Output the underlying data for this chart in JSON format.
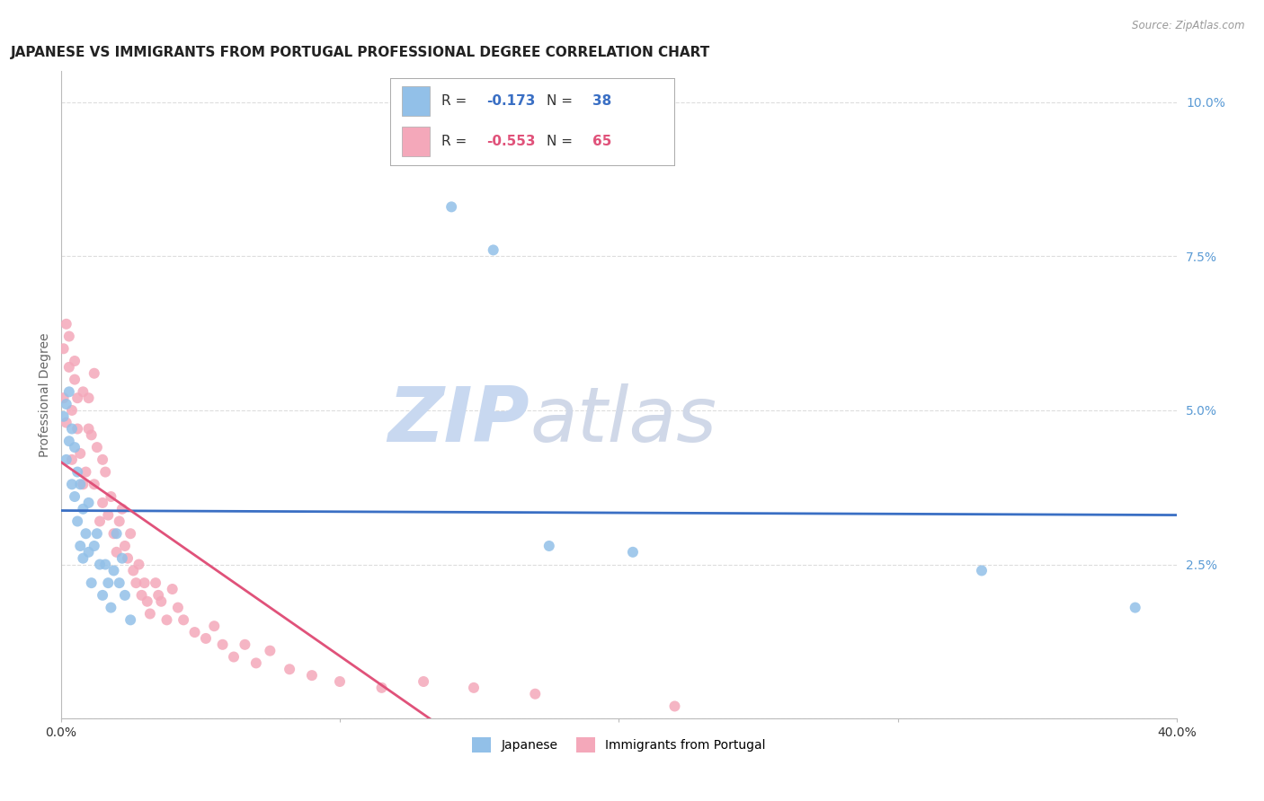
{
  "title": "JAPANESE VS IMMIGRANTS FROM PORTUGAL PROFESSIONAL DEGREE CORRELATION CHART",
  "source": "Source: ZipAtlas.com",
  "ylabel": "Professional Degree",
  "xlim": [
    0.0,
    0.4
  ],
  "ylim": [
    0.0,
    0.105
  ],
  "ytick_vals": [
    0.0,
    0.025,
    0.05,
    0.075,
    0.1
  ],
  "ytick_labels": [
    "",
    "2.5%",
    "5.0%",
    "7.5%",
    "10.0%"
  ],
  "xtick_vals": [
    0.0,
    0.1,
    0.2,
    0.3,
    0.4
  ],
  "xtick_labels": [
    "0.0%",
    "",
    "",
    "",
    "40.0%"
  ],
  "legend_R_japanese": "-0.173",
  "legend_N_japanese": "38",
  "legend_R_portugal": "-0.553",
  "legend_N_portugal": "65",
  "japanese_x": [
    0.001,
    0.002,
    0.002,
    0.003,
    0.003,
    0.004,
    0.004,
    0.005,
    0.005,
    0.006,
    0.006,
    0.007,
    0.007,
    0.008,
    0.008,
    0.009,
    0.01,
    0.01,
    0.011,
    0.012,
    0.013,
    0.014,
    0.015,
    0.016,
    0.017,
    0.018,
    0.019,
    0.02,
    0.021,
    0.022,
    0.023,
    0.025,
    0.14,
    0.155,
    0.175,
    0.205,
    0.33,
    0.385
  ],
  "japanese_y": [
    0.049,
    0.051,
    0.042,
    0.053,
    0.045,
    0.047,
    0.038,
    0.044,
    0.036,
    0.04,
    0.032,
    0.038,
    0.028,
    0.034,
    0.026,
    0.03,
    0.035,
    0.027,
    0.022,
    0.028,
    0.03,
    0.025,
    0.02,
    0.025,
    0.022,
    0.018,
    0.024,
    0.03,
    0.022,
    0.026,
    0.02,
    0.016,
    0.083,
    0.076,
    0.028,
    0.027,
    0.024,
    0.018
  ],
  "portugal_x": [
    0.001,
    0.001,
    0.002,
    0.002,
    0.003,
    0.003,
    0.004,
    0.004,
    0.005,
    0.005,
    0.006,
    0.006,
    0.007,
    0.008,
    0.008,
    0.009,
    0.01,
    0.01,
    0.011,
    0.012,
    0.012,
    0.013,
    0.014,
    0.015,
    0.015,
    0.016,
    0.017,
    0.018,
    0.019,
    0.02,
    0.021,
    0.022,
    0.023,
    0.024,
    0.025,
    0.026,
    0.027,
    0.028,
    0.029,
    0.03,
    0.031,
    0.032,
    0.034,
    0.035,
    0.036,
    0.038,
    0.04,
    0.042,
    0.044,
    0.048,
    0.052,
    0.055,
    0.058,
    0.062,
    0.066,
    0.07,
    0.075,
    0.082,
    0.09,
    0.1,
    0.115,
    0.13,
    0.148,
    0.17,
    0.22
  ],
  "portugal_y": [
    0.06,
    0.052,
    0.064,
    0.048,
    0.057,
    0.062,
    0.05,
    0.042,
    0.055,
    0.058,
    0.047,
    0.052,
    0.043,
    0.038,
    0.053,
    0.04,
    0.047,
    0.052,
    0.046,
    0.038,
    0.056,
    0.044,
    0.032,
    0.042,
    0.035,
    0.04,
    0.033,
    0.036,
    0.03,
    0.027,
    0.032,
    0.034,
    0.028,
    0.026,
    0.03,
    0.024,
    0.022,
    0.025,
    0.02,
    0.022,
    0.019,
    0.017,
    0.022,
    0.02,
    0.019,
    0.016,
    0.021,
    0.018,
    0.016,
    0.014,
    0.013,
    0.015,
    0.012,
    0.01,
    0.012,
    0.009,
    0.011,
    0.008,
    0.007,
    0.006,
    0.005,
    0.006,
    0.005,
    0.004,
    0.002
  ],
  "japanese_color": "#92C0E8",
  "portugal_color": "#F4A8BA",
  "japanese_line_color": "#3A6FC4",
  "portugal_line_color": "#E0527A",
  "background_color": "#FFFFFF",
  "grid_color": "#DDDDDD",
  "watermark_zip_color": "#C8D8F0",
  "watermark_atlas_color": "#D0D8E8",
  "title_fontsize": 11,
  "axis_label_fontsize": 10,
  "tick_fontsize": 10,
  "marker_size": 75,
  "line_width": 2.0
}
